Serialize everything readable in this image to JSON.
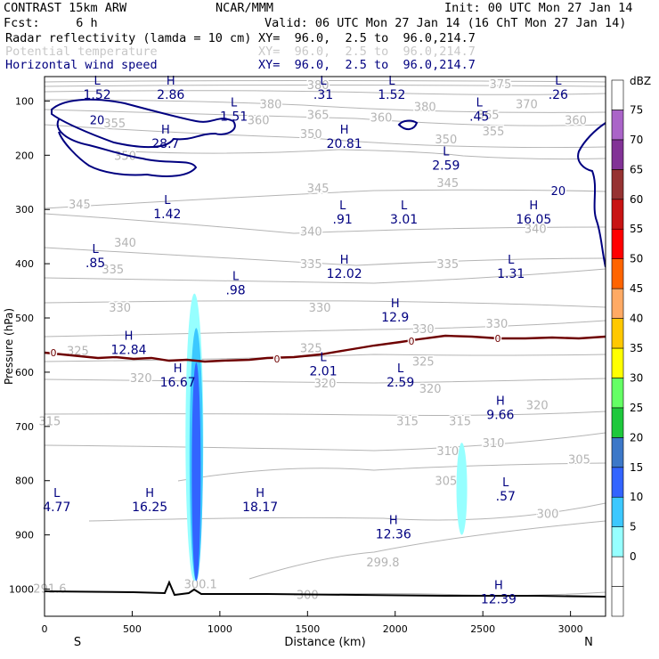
{
  "header": {
    "model": "CONTRAST 15km ARW",
    "center": "NCAR/MMM",
    "init": "Init: 00 UTC Mon 27 Jan 14",
    "fcst": "Fcst:     6 h",
    "valid": "Valid: 06 UTC Mon 27 Jan 14 (16 ChT Mon 27 Jan 14)",
    "fields": [
      {
        "name": "Radar reflectivity (lamda = 10 cm)",
        "xy": "XY=  96.0,  2.5 to  96.0,214.7",
        "color": "#000000"
      },
      {
        "name": "Potential temperature",
        "xy": "XY=  96.0,  2.5 to  96.0,214.7",
        "color": "#c8c8c8"
      },
      {
        "name": "Horizontal wind speed",
        "xy": "XY=  96.0,  2.5 to  96.0,214.7",
        "color": "#000080"
      }
    ]
  },
  "chart_data": {
    "type": "contour",
    "xlabel": "Distance (km)",
    "ylabel": "Pressure (hPa)",
    "xlim": [
      0,
      3200
    ],
    "ylim": [
      1050,
      55
    ],
    "xticks": [
      0,
      500,
      1000,
      1500,
      2000,
      2500,
      3000
    ],
    "yticks": [
      100,
      200,
      300,
      400,
      500,
      600,
      700,
      800,
      900,
      1000
    ],
    "x_end_labels": {
      "left": "S",
      "right": "N"
    },
    "colorbar": {
      "units": "dBZ",
      "levels": [
        -5,
        0,
        5,
        10,
        15,
        20,
        25,
        30,
        35,
        40,
        45,
        50,
        55,
        60,
        65,
        70,
        75,
        80
      ],
      "tick_labels": [
        "0",
        "5",
        "10",
        "15",
        "20",
        "25",
        "30",
        "35",
        "40",
        "45",
        "50",
        "55",
        "60",
        "65",
        "70",
        "75"
      ],
      "colors": [
        "#ffffff",
        "#ffffff",
        "#96ffff",
        "#3cc8ff",
        "#3264ff",
        "#3c78c8",
        "#1ec83c",
        "#64ff64",
        "#ffff00",
        "#ffc800",
        "#ffaa64",
        "#ff6400",
        "#ff0000",
        "#c81414",
        "#963232",
        "#823296",
        "#aa64c8",
        "#ffffff"
      ]
    },
    "reflectivity_cells": [
      {
        "x": 855,
        "p_top": 455,
        "p_bottom": 985,
        "max_dbz": 20
      },
      {
        "x": 2380,
        "p_top": 730,
        "p_bottom": 900,
        "max_dbz": 10
      }
    ],
    "theta_labels": [
      "380",
      "375",
      "370",
      "365",
      "360",
      "355",
      "350",
      "345",
      "340",
      "335",
      "330",
      "325",
      "320",
      "315",
      "310",
      "305",
      "300",
      "299.8",
      "300.1",
      "291.6"
    ],
    "wind_contour_labels": [
      "20",
      "20"
    ],
    "zero_line_label": "0",
    "extrema": [
      {
        "t": "L",
        "v": "1.52",
        "x": 300,
        "p": 70
      },
      {
        "t": "H",
        "v": "2.86",
        "x": 720,
        "p": 70
      },
      {
        "t": "L",
        "v": "1.51",
        "x": 1080,
        "p": 110
      },
      {
        "t": "L",
        "v": ".31",
        "x": 1590,
        "p": 70
      },
      {
        "t": "L",
        "v": "1.52",
        "x": 1980,
        "p": 70
      },
      {
        "t": "L",
        "v": ".45",
        "x": 2480,
        "p": 110
      },
      {
        "t": "L",
        "v": ".26",
        "x": 2930,
        "p": 70
      },
      {
        "t": "H",
        "v": "28.7",
        "x": 690,
        "p": 160
      },
      {
        "t": "H",
        "v": "20.81",
        "x": 1710,
        "p": 160
      },
      {
        "t": "L",
        "v": "2.59",
        "x": 2290,
        "p": 200
      },
      {
        "t": "L",
        "v": "1.42",
        "x": 700,
        "p": 290
      },
      {
        "t": "L",
        "v": ".91",
        "x": 1700,
        "p": 300
      },
      {
        "t": "L",
        "v": "3.01",
        "x": 2050,
        "p": 300
      },
      {
        "t": "H",
        "v": "16.05",
        "x": 2790,
        "p": 300
      },
      {
        "t": "L",
        "v": ".85",
        "x": 290,
        "p": 380
      },
      {
        "t": "H",
        "v": "12.02",
        "x": 1710,
        "p": 400
      },
      {
        "t": "L",
        "v": "1.31",
        "x": 2660,
        "p": 400
      },
      {
        "t": "L",
        "v": ".98",
        "x": 1090,
        "p": 430
      },
      {
        "t": "H",
        "v": "12.9",
        "x": 2000,
        "p": 480
      },
      {
        "t": "H",
        "v": "12.84",
        "x": 480,
        "p": 540
      },
      {
        "t": "L",
        "v": "2.01",
        "x": 1590,
        "p": 580
      },
      {
        "t": "H",
        "v": "16.67",
        "x": 760,
        "p": 600
      },
      {
        "t": "L",
        "v": "2.59",
        "x": 2030,
        "p": 600
      },
      {
        "t": "H",
        "v": "9.66",
        "x": 2600,
        "p": 660
      },
      {
        "t": "L",
        "v": ".57",
        "x": 2630,
        "p": 810
      },
      {
        "t": "L",
        "v": "4.77",
        "x": 70,
        "p": 830
      },
      {
        "t": "H",
        "v": "16.25",
        "x": 600,
        "p": 830
      },
      {
        "t": "H",
        "v": "18.17",
        "x": 1230,
        "p": 830
      },
      {
        "t": "H",
        "v": "12.36",
        "x": 1990,
        "p": 880
      },
      {
        "t": "H",
        "v": "12.39",
        "x": 2590,
        "p": 1000
      }
    ]
  }
}
